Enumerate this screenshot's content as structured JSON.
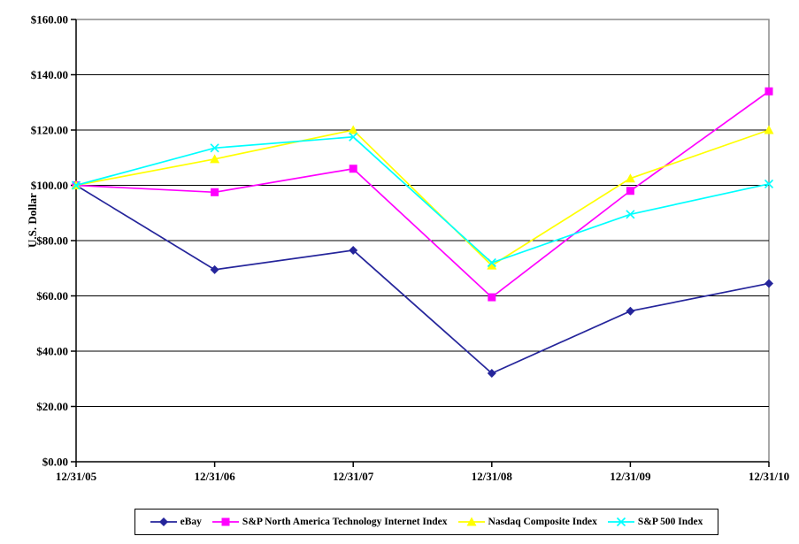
{
  "chart_data": {
    "type": "line",
    "title": "",
    "xlabel": "",
    "ylabel": "U.S. Dollar",
    "ylim": [
      0,
      160
    ],
    "grid": "horizontal",
    "legend_position": "bottom",
    "categories": [
      "12/31/05",
      "12/31/06",
      "12/31/07",
      "12/31/08",
      "12/31/09",
      "12/31/10"
    ],
    "y_ticks": {
      "values": [
        0,
        20,
        40,
        60,
        80,
        100,
        120,
        140,
        160
      ],
      "labels": [
        "$0.00",
        "$20.00",
        "$40.00",
        "$60.00",
        "$80.00",
        "$100.00",
        "$120.00",
        "$140.00",
        "$160.00"
      ]
    },
    "series": [
      {
        "name": "eBay",
        "marker": "diamond",
        "color": "#25259B",
        "values": [
          100.0,
          69.5,
          76.5,
          32.0,
          54.5,
          64.5
        ]
      },
      {
        "name": "S&P North America Technology Internet Index",
        "marker": "square",
        "color": "#FF00FF",
        "values": [
          100.0,
          97.5,
          106.0,
          59.5,
          98.0,
          134.0
        ]
      },
      {
        "name": "Nasdaq Composite Index",
        "marker": "triangle",
        "color": "#FFFF00",
        "values": [
          100.0,
          109.5,
          120.0,
          71.0,
          102.5,
          120.0
        ]
      },
      {
        "name": "S&P 500 Index",
        "marker": "x",
        "color": "#00FFFF",
        "values": [
          100.0,
          113.5,
          117.5,
          72.0,
          89.5,
          100.5
        ]
      }
    ],
    "colors": {
      "axis": "#000000",
      "gridline": "#000000",
      "plot_border": "#8C8C8C",
      "background": "#FFFFFF"
    }
  }
}
